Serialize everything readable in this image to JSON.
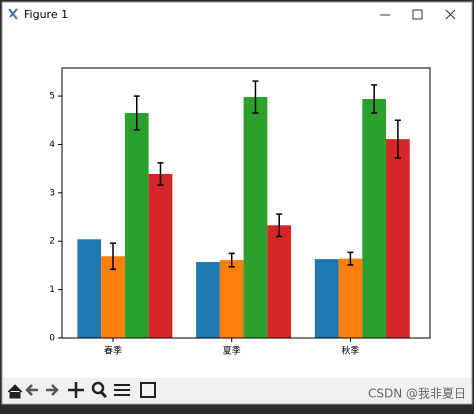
{
  "window_title": "Figure 1",
  "watermark": "CSDN @我非夏日",
  "chart_data": {
    "type": "bar",
    "categories": [
      "春季",
      "夏季",
      "秋季"
    ],
    "series": [
      {
        "color": "#1f77b4",
        "values": [
          2.04,
          1.57,
          1.63
        ]
      },
      {
        "color": "#ff7f0e",
        "values": [
          1.69,
          1.61,
          1.64
        ],
        "errors": [
          0.27,
          0.14,
          0.13
        ]
      },
      {
        "color": "#2ca02c",
        "values": [
          4.65,
          4.98,
          4.94
        ],
        "errors": [
          0.35,
          0.33,
          0.29
        ]
      },
      {
        "color": "#d62728",
        "values": [
          3.39,
          2.33,
          4.11
        ],
        "errors": [
          0.23,
          0.23,
          0.39
        ]
      }
    ],
    "ylim": [
      0,
      5.58
    ],
    "yticks": [
      0,
      1,
      2,
      3,
      4,
      5
    ],
    "grid": false
  }
}
